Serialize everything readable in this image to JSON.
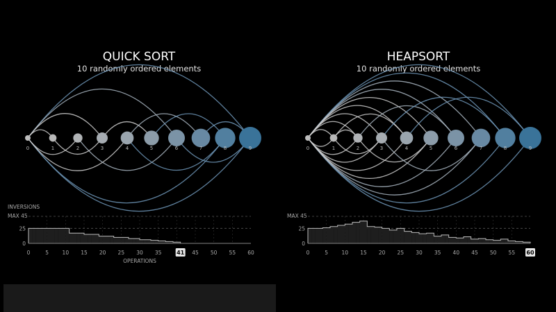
{
  "chart_data": [
    {
      "type": "arc",
      "title": "QUICK SORT",
      "subtitle": "10 randomly ordered elements",
      "nodes": [
        {
          "label": "0",
          "value": 0,
          "color": "#bdbdbd"
        },
        {
          "label": "1",
          "value": 1,
          "color": "#b8b8b8"
        },
        {
          "label": "2",
          "value": 2,
          "color": "#b0b3b6"
        },
        {
          "label": "3",
          "value": 3,
          "color": "#a6acb2"
        },
        {
          "label": "4",
          "value": 4,
          "color": "#9aa5ae"
        },
        {
          "label": "5",
          "value": 5,
          "color": "#8c9ca9"
        },
        {
          "label": "6",
          "value": 6,
          "color": "#7b93a6"
        },
        {
          "label": "7",
          "value": 7,
          "color": "#6889a3"
        },
        {
          "label": "8",
          "value": 8,
          "color": "#517f9f"
        },
        {
          "label": "9",
          "value": 9,
          "color": "#3a7399"
        }
      ],
      "arcs": [
        {
          "from": 0,
          "to": 9,
          "side": "top"
        },
        {
          "from": 0,
          "to": 9,
          "side": "bottom"
        },
        {
          "from": 0,
          "to": 8,
          "side": "bottom"
        },
        {
          "from": 0,
          "to": 6,
          "side": "top"
        },
        {
          "from": 0,
          "to": 4,
          "side": "bottom"
        },
        {
          "from": 0,
          "to": 3,
          "side": "top"
        },
        {
          "from": 0,
          "to": 2,
          "side": "bottom"
        },
        {
          "from": 0,
          "to": 1,
          "side": "top"
        },
        {
          "from": 2,
          "to": 6,
          "side": "bottom"
        },
        {
          "from": 3,
          "to": 5,
          "side": "top"
        },
        {
          "from": 4,
          "to": 7,
          "side": "top"
        },
        {
          "from": 4,
          "to": 8,
          "side": "bottom"
        },
        {
          "from": 5,
          "to": 8,
          "side": "top"
        },
        {
          "from": 6,
          "to": 9,
          "side": "bottom"
        },
        {
          "from": 7,
          "to": 9,
          "side": "top"
        },
        {
          "from": 1,
          "to": 3,
          "side": "bottom"
        }
      ],
      "histogram": {
        "ylabel": "INVERSIONS",
        "max_label": "MAX 45",
        "yticks": [
          0,
          25
        ],
        "ymax": 45,
        "xlabel": "OPERATIONS",
        "xticks": [
          0,
          5,
          10,
          15,
          20,
          25,
          30,
          35,
          40,
          45,
          50,
          55,
          60
        ],
        "xmax": 60,
        "current": "41",
        "values": [
          25,
          25,
          25,
          25,
          25,
          25,
          25,
          25,
          25,
          25,
          25,
          17,
          17,
          17,
          17,
          15,
          15,
          15,
          15,
          12,
          12,
          12,
          12,
          10,
          10,
          10,
          10,
          8,
          8,
          8,
          6,
          6,
          6,
          5,
          5,
          4,
          4,
          3,
          3,
          2,
          2
        ]
      }
    },
    {
      "type": "arc",
      "title": "HEAPSORT",
      "subtitle": "10 randomly ordered elements",
      "nodes": [
        {
          "label": "0",
          "value": 0,
          "color": "#bdbdbd"
        },
        {
          "label": "1",
          "value": 1,
          "color": "#b8b8b8"
        },
        {
          "label": "2",
          "value": 2,
          "color": "#b0b3b6"
        },
        {
          "label": "3",
          "value": 3,
          "color": "#a6acb2"
        },
        {
          "label": "4",
          "value": 4,
          "color": "#9aa5ae"
        },
        {
          "label": "5",
          "value": 5,
          "color": "#8c9ca9"
        },
        {
          "label": "6",
          "value": 6,
          "color": "#7b93a6"
        },
        {
          "label": "7",
          "value": 7,
          "color": "#6889a3"
        },
        {
          "label": "8",
          "value": 8,
          "color": "#517f9f"
        },
        {
          "label": "9",
          "value": 9,
          "color": "#3a7399"
        }
      ],
      "arcs": [
        {
          "from": 0,
          "to": 9,
          "side": "top"
        },
        {
          "from": 0,
          "to": 9,
          "side": "bottom"
        },
        {
          "from": 0,
          "to": 8,
          "side": "top"
        },
        {
          "from": 0,
          "to": 8,
          "side": "bottom"
        },
        {
          "from": 0,
          "to": 7,
          "side": "top"
        },
        {
          "from": 0,
          "to": 7,
          "side": "bottom"
        },
        {
          "from": 0,
          "to": 6,
          "side": "top"
        },
        {
          "from": 0,
          "to": 6,
          "side": "bottom"
        },
        {
          "from": 0,
          "to": 5,
          "side": "top"
        },
        {
          "from": 0,
          "to": 5,
          "side": "bottom"
        },
        {
          "from": 0,
          "to": 4,
          "side": "top"
        },
        {
          "from": 0,
          "to": 4,
          "side": "bottom"
        },
        {
          "from": 0,
          "to": 3,
          "side": "top"
        },
        {
          "from": 0,
          "to": 3,
          "side": "bottom"
        },
        {
          "from": 0,
          "to": 2,
          "side": "top"
        },
        {
          "from": 0,
          "to": 2,
          "side": "bottom"
        },
        {
          "from": 0,
          "to": 1,
          "side": "top"
        },
        {
          "from": 0,
          "to": 1,
          "side": "bottom"
        },
        {
          "from": 1,
          "to": 4,
          "side": "top"
        },
        {
          "from": 1,
          "to": 3,
          "side": "bottom"
        },
        {
          "from": 2,
          "to": 6,
          "side": "top"
        },
        {
          "from": 2,
          "to": 5,
          "side": "bottom"
        },
        {
          "from": 3,
          "to": 8,
          "side": "top"
        },
        {
          "from": 3,
          "to": 7,
          "side": "bottom"
        },
        {
          "from": 4,
          "to": 9,
          "side": "top"
        },
        {
          "from": 1,
          "to": 2,
          "side": "top"
        }
      ],
      "histogram": {
        "max_label": "MAX 45",
        "yticks": [
          0,
          25
        ],
        "ymax": 45,
        "xticks": [
          0,
          5,
          10,
          15,
          20,
          25,
          30,
          35,
          40,
          45,
          50,
          55,
          60
        ],
        "xmax": 60,
        "current": "60",
        "values": [
          25,
          25,
          25,
          25,
          26,
          26,
          28,
          28,
          30,
          30,
          32,
          32,
          35,
          35,
          37,
          37,
          28,
          28,
          27,
          27,
          25,
          25,
          22,
          22,
          25,
          25,
          20,
          20,
          18,
          18,
          16,
          16,
          17,
          17,
          12,
          12,
          14,
          14,
          10,
          10,
          9,
          9,
          11,
          11,
          7,
          7,
          8,
          8,
          6,
          6,
          5,
          5,
          7,
          7,
          4,
          4,
          3,
          3,
          2,
          2
        ]
      }
    }
  ]
}
